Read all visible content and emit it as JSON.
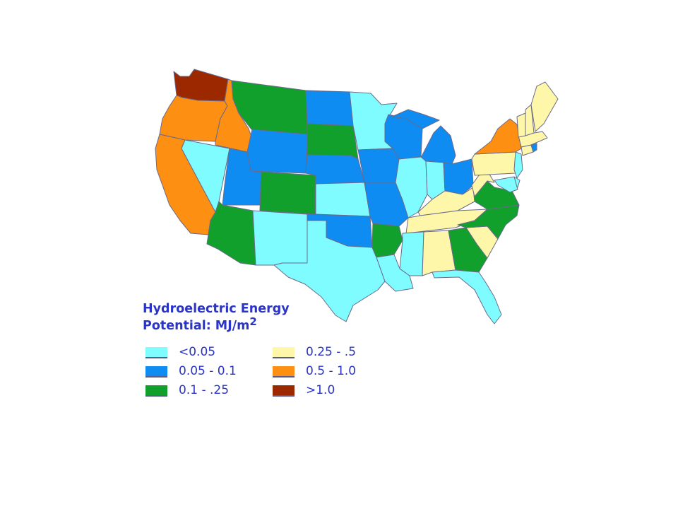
{
  "title": {
    "line1": "Hydroelectric Energy",
    "line2": "Potential: MJ/m",
    "superscript": "2"
  },
  "legend": [
    {
      "id": "c1",
      "label": "<0.05",
      "color": "#7ffcff"
    },
    {
      "id": "c2",
      "label": "0.05 - 0.1",
      "color": "#0f8cf2"
    },
    {
      "id": "c3",
      "label": "0.1 - .25",
      "color": "#11a02c"
    },
    {
      "id": "c4",
      "label": "0.25 - .5",
      "color": "#fef6a8"
    },
    {
      "id": "c5",
      "label": "0.5 - 1.0",
      "color": "#fd8f13"
    },
    {
      "id": "c6",
      "label": ">1.0",
      "color": "#9c2800"
    }
  ],
  "states": {
    "WA": "c6",
    "OR": "c5",
    "CA": "c5",
    "ID": "c5",
    "NV": "c1",
    "MT": "c3",
    "WY": "c2",
    "UT": "c2",
    "AZ": "c3",
    "CO": "c3",
    "NM": "c1",
    "ND": "c2",
    "SD": "c3",
    "NE": "c2",
    "KS": "c1",
    "OK": "c2",
    "TX": "c1",
    "MN": "c1",
    "IA": "c2",
    "MO": "c2",
    "AR": "c3",
    "LA": "c1",
    "WI": "c2",
    "MI": "c2",
    "IL": "c1",
    "IN": "c1",
    "OH": "c2",
    "KY": "c4",
    "TN": "c4",
    "MS": "c1",
    "AL": "c4",
    "GA": "c3",
    "FL": "c1",
    "SC": "c4",
    "NC": "c3",
    "VA": "c3",
    "WV": "c4",
    "PA": "c4",
    "NY": "c5",
    "NJ": "c1",
    "DE": "c1",
    "MD": "c1",
    "CT": "c4",
    "RI": "c2",
    "MA": "c4",
    "VT": "c4",
    "NH": "c4",
    "ME": "c4"
  }
}
